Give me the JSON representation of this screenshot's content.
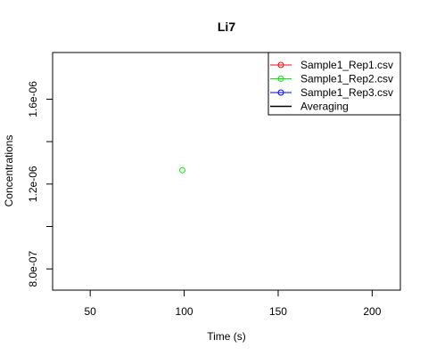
{
  "chart_data": {
    "type": "scatter",
    "title": "Li7",
    "xlabel": "Time (s)",
    "ylabel": "Concentrations",
    "xlim": [
      30,
      215
    ],
    "ylim": [
      7e-07,
      1.82e-06
    ],
    "xticks": [
      50,
      100,
      150,
      200
    ],
    "xtick_labels": [
      "50",
      "100",
      "150",
      "200"
    ],
    "yticks": [
      8e-07,
      1e-06,
      1.2e-06,
      1.4e-06,
      1.6e-06
    ],
    "ytick_labels": [
      "8.0e-07",
      "",
      "1.2e-06",
      "",
      "1.6e-06"
    ],
    "grid": false,
    "legend_position": "top-right",
    "series": [
      {
        "name": "Sample1_Rep1.csv",
        "color": "#ff0000",
        "marker": "open-circle",
        "x": [],
        "y": []
      },
      {
        "name": "Sample1_Rep2.csv",
        "color": "#00ee00",
        "marker": "open-circle",
        "x": [
          99
        ],
        "y": [
          1.265e-06
        ]
      },
      {
        "name": "Sample1_Rep3.csv",
        "color": "#0000ff",
        "marker": "open-circle",
        "x": [],
        "y": []
      },
      {
        "name": "Averaging",
        "color": "#000000",
        "marker": "line",
        "x": [],
        "y": []
      }
    ]
  }
}
